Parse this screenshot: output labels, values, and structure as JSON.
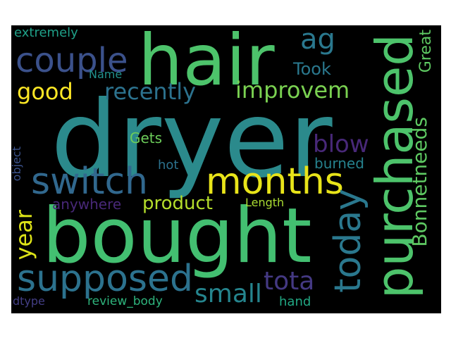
{
  "wordcloud": {
    "words": [
      {
        "text": "dryer",
        "color": "#2b8a8c"
      },
      {
        "text": "bought",
        "color": "#43bf71"
      },
      {
        "text": "hair",
        "color": "#4dc36b"
      },
      {
        "text": "purchased",
        "color": "#4dc36b"
      },
      {
        "text": "months",
        "color": "#e8e419"
      },
      {
        "text": "switch",
        "color": "#31688e"
      },
      {
        "text": "supposed",
        "color": "#2c728e"
      },
      {
        "text": "couple",
        "color": "#3b518b"
      },
      {
        "text": "today",
        "color": "#2a788e"
      },
      {
        "text": "improvem",
        "color": "#7ad151"
      },
      {
        "text": "recently",
        "color": "#2c728e"
      },
      {
        "text": "good",
        "color": "#fde725"
      },
      {
        "text": "Bonnetneeds",
        "color": "#5ec962"
      },
      {
        "text": "Great",
        "color": "#5ec962"
      },
      {
        "text": "ag",
        "color": "#2a788e"
      },
      {
        "text": "blow",
        "color": "#482878"
      },
      {
        "text": "tota",
        "color": "#443983"
      },
      {
        "text": "small",
        "color": "#25858e"
      },
      {
        "text": "year",
        "color": "#dde318"
      },
      {
        "text": "product",
        "color": "#b5de2b"
      },
      {
        "text": "Took",
        "color": "#2a788e"
      },
      {
        "text": "extremely",
        "color": "#1fa088"
      },
      {
        "text": "Name",
        "color": "#21918c"
      },
      {
        "text": "Gets",
        "color": "#6ccd5a"
      },
      {
        "text": "hot",
        "color": "#2c728e"
      },
      {
        "text": "anywhere",
        "color": "#482878"
      },
      {
        "text": "burned",
        "color": "#26828e"
      },
      {
        "text": "Length",
        "color": "#aadc32"
      },
      {
        "text": "object",
        "color": "#3b528b"
      },
      {
        "text": "dtype",
        "color": "#433e85"
      },
      {
        "text": "review_body",
        "color": "#2eb37c"
      },
      {
        "text": "hand",
        "color": "#22a884"
      }
    ]
  }
}
